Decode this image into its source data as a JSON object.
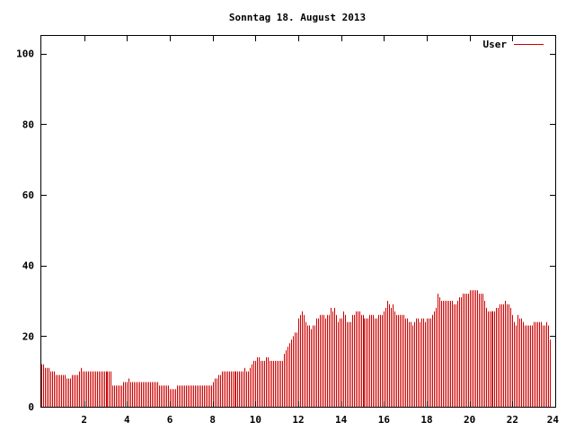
{
  "chart_data": {
    "type": "bar",
    "title": "Sonntag 18. August 2013",
    "xlabel": "",
    "ylabel": "",
    "xlim": [
      0,
      24
    ],
    "ylim": [
      0,
      105
    ],
    "x_ticks": [
      "2",
      "4",
      "6",
      "8",
      "10",
      "12",
      "14",
      "16",
      "18",
      "20",
      "22",
      "24"
    ],
    "y_ticks": [
      "0",
      "20",
      "40",
      "60",
      "80",
      "100"
    ],
    "grid": false,
    "legend_position": "top-right",
    "series": [
      {
        "name": "User",
        "color": "#cc0000",
        "interval_minutes": 5,
        "values": [
          12,
          12,
          11,
          11,
          11,
          10,
          10,
          10,
          9,
          9,
          9,
          9,
          9,
          9,
          8,
          8,
          8,
          9,
          9,
          9,
          9,
          10,
          11,
          10,
          10,
          10,
          10,
          10,
          10,
          10,
          10,
          10,
          10,
          10,
          10,
          10,
          10,
          10,
          10,
          10,
          6,
          6,
          6,
          6,
          6,
          6,
          7,
          7,
          7,
          8,
          7,
          7,
          7,
          7,
          7,
          7,
          7,
          7,
          7,
          7,
          7,
          7,
          7,
          7,
          7,
          7,
          6,
          6,
          6,
          6,
          6,
          6,
          5,
          5,
          5,
          5,
          6,
          6,
          6,
          6,
          6,
          6,
          6,
          6,
          6,
          6,
          6,
          6,
          6,
          6,
          6,
          6,
          6,
          6,
          6,
          6,
          7,
          8,
          8,
          9,
          9,
          10,
          10,
          10,
          10,
          10,
          10,
          10,
          10,
          10,
          10,
          10,
          10,
          10,
          11,
          10,
          10,
          11,
          12,
          13,
          13,
          14,
          14,
          13,
          13,
          13,
          14,
          14,
          13,
          13,
          13,
          13,
          13,
          13,
          13,
          13,
          15,
          16,
          17,
          18,
          19,
          20,
          21,
          21,
          25,
          26,
          27,
          26,
          24,
          23,
          23,
          22,
          23,
          23,
          25,
          25,
          26,
          26,
          26,
          25,
          26,
          26,
          28,
          27,
          28,
          26,
          24,
          25,
          25,
          27,
          26,
          24,
          24,
          24,
          26,
          26,
          27,
          27,
          27,
          26,
          26,
          25,
          25,
          25,
          26,
          26,
          26,
          25,
          25,
          26,
          26,
          26,
          27,
          28,
          30,
          29,
          28,
          29,
          27,
          26,
          26,
          26,
          26,
          26,
          25,
          25,
          24,
          24,
          23,
          24,
          25,
          25,
          24,
          25,
          25,
          24,
          25,
          25,
          25,
          26,
          27,
          28,
          32,
          31,
          30,
          30,
          30,
          30,
          30,
          30,
          30,
          29,
          29,
          30,
          31,
          31,
          32,
          32,
          32,
          32,
          33,
          33,
          33,
          33,
          33,
          32,
          32,
          32,
          30,
          28,
          27,
          27,
          27,
          27,
          27,
          28,
          28,
          29,
          29,
          29,
          30,
          29,
          29,
          28,
          26,
          24,
          23,
          26,
          25,
          25,
          24,
          23,
          23,
          23,
          23,
          23,
          24,
          24,
          24,
          24,
          24,
          23,
          23,
          24,
          23,
          19
        ]
      }
    ]
  }
}
